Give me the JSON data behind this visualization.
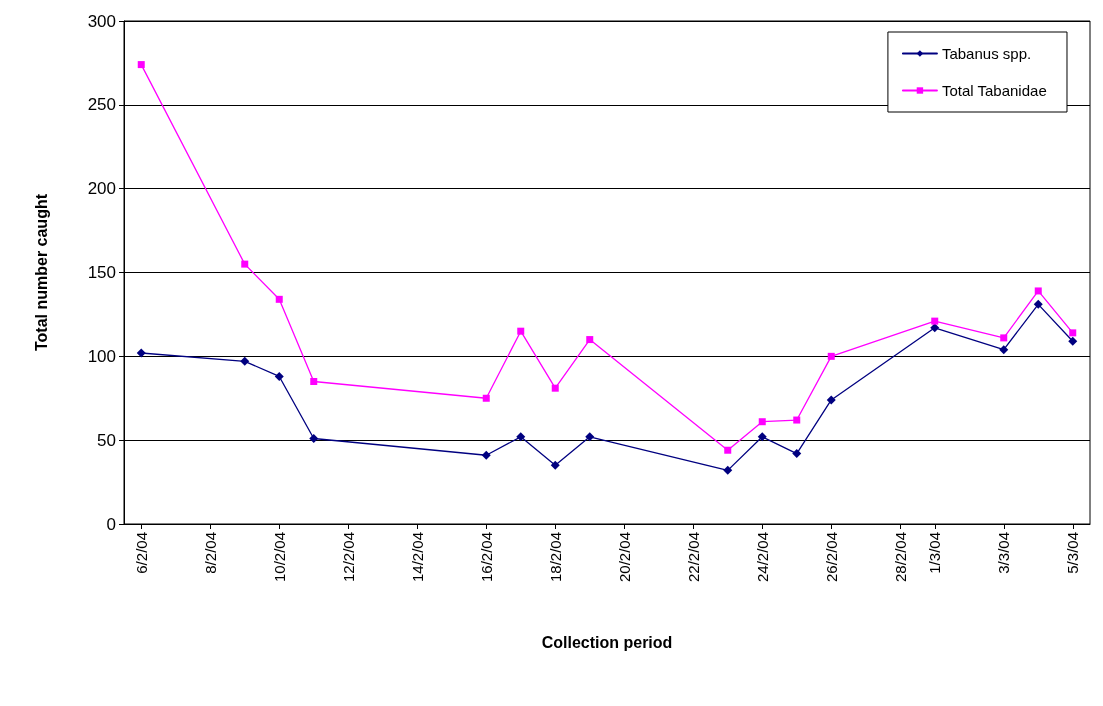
{
  "chart_data": {
    "type": "line",
    "xlabel": "Collection period",
    "ylabel": "Total number caught",
    "x": [
      "--02-06",
      "--02-09",
      "--02-10",
      "--02-11",
      "--02-16",
      "--02-17",
      "--02-18",
      "--02-19",
      "--02-23",
      "--02-24",
      "--02-25",
      "--02-26",
      "--03-01",
      "--03-03",
      "--03-04",
      "--03-05"
    ],
    "series": [
      {
        "name": "Tabanus spp.",
        "color": "#000080",
        "marker": "diamond",
        "values": [
          102,
          97,
          88,
          51,
          41,
          52,
          35,
          52,
          32,
          52,
          42,
          74,
          117,
          104,
          131,
          109
        ]
      },
      {
        "name": "Total Tabanidae",
        "color": "#ff00ff",
        "marker": "square",
        "values": [
          274,
          155,
          134,
          85,
          75,
          115,
          81,
          110,
          44,
          61,
          62,
          100,
          121,
          111,
          139,
          114
        ]
      }
    ],
    "xlim": [
      "--02-05T12:00",
      "--03-05T12:00"
    ],
    "xticks": [
      {
        "value": "--02-06",
        "label": "6/2/04"
      },
      {
        "value": "--02-08",
        "label": "8/2/04"
      },
      {
        "value": "--02-10",
        "label": "10/2/04"
      },
      {
        "value": "--02-12",
        "label": "12/2/04"
      },
      {
        "value": "--02-14",
        "label": "14/2/04"
      },
      {
        "value": "--02-16",
        "label": "16/2/04"
      },
      {
        "value": "--02-18",
        "label": "18/2/04"
      },
      {
        "value": "--02-20",
        "label": "20/2/04"
      },
      {
        "value": "--02-22",
        "label": "22/2/04"
      },
      {
        "value": "--02-24",
        "label": "24/2/04"
      },
      {
        "value": "--02-26",
        "label": "26/2/04"
      },
      {
        "value": "--02-28",
        "label": "28/2/04"
      },
      {
        "value": "--03-01",
        "label": "1/3/04"
      },
      {
        "value": "--03-03",
        "label": "3/3/04"
      },
      {
        "value": "--03-05",
        "label": "5/3/04"
      }
    ],
    "ylim": [
      0,
      300
    ],
    "yticks": [
      0,
      50,
      100,
      150,
      200,
      250,
      300
    ],
    "grid": "y",
    "legend": "top right",
    "line_style": "solid"
  }
}
